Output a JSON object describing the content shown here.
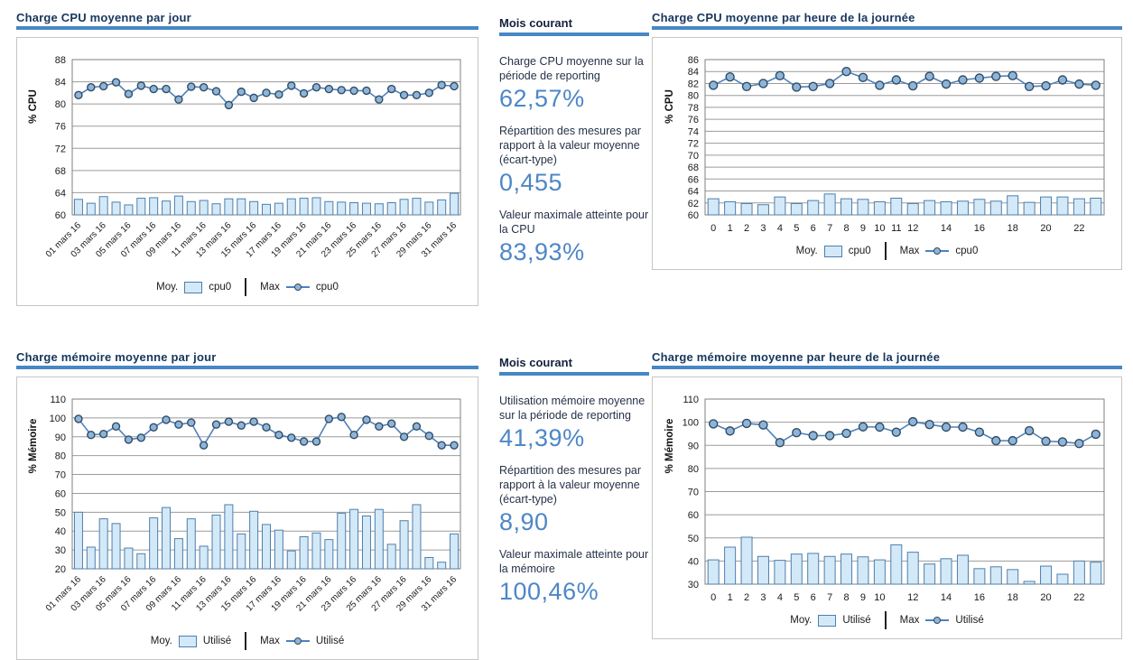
{
  "colors": {
    "title_navy": "#17365d",
    "rule_blue": "#4787c4",
    "stat_value_blue": "#4d87c7",
    "stat_label_navy": "#263248",
    "bar_fill": "#d4e9f7",
    "bar_stroke": "#4e7fae",
    "line_blue": "#4f81bd",
    "marker_fill": "#8fb4d8",
    "marker_stroke": "#2e4d66",
    "grid_grey": "#9b9b9b",
    "plot_border": "#7f7f7f",
    "box_border": "#c6c6c6"
  },
  "panels": {
    "cpu_stats": {
      "header": "Mois courant",
      "items": [
        {
          "label": "Charge CPU moyenne sur la période de reporting",
          "value": "62,57%"
        },
        {
          "label": "Répartition des mesures par rapport à la valeur moyenne (écart-type)",
          "value": "0,455"
        },
        {
          "label": "Valeur maximale atteinte pour la CPU",
          "value": "83,93%"
        }
      ]
    },
    "mem_stats": {
      "header": "Mois courant",
      "items": [
        {
          "label": "Utilisation mémoire moyenne sur la période de reporting",
          "value": "41,39%"
        },
        {
          "label": "Répartition des mesures par rapport à la valeur moyenne (écart-type)",
          "value": "8,90"
        },
        {
          "label": "Valeur maximale atteinte pour la mémoire",
          "value": "100,46%"
        }
      ]
    }
  },
  "chart_data": [
    {
      "type": "bar+line",
      "title": "Charge CPU  moyenne par jour",
      "ylabel": "% CPU",
      "ylim": [
        60,
        88
      ],
      "ystep": 4,
      "x_label_every": 2,
      "categories": [
        "01 mars 16",
        "02 mars 16",
        "03 mars 16",
        "04 mars 16",
        "05 mars 16",
        "06 mars 16",
        "07 mars 16",
        "08 mars 16",
        "09 mars 16",
        "10 mars 16",
        "11 mars 16",
        "12 mars 16",
        "13 mars 16",
        "14 mars 16",
        "15 mars 16",
        "16 mars 16",
        "17 mars 16",
        "18 mars 16",
        "19 mars 16",
        "20 mars 16",
        "21 mars 16",
        "22 mars 16",
        "23 mars 16",
        "24 mars 16",
        "25 mars 16",
        "26 mars 16",
        "27 mars 16",
        "28 mars 16",
        "29 mars 16",
        "30 mars 16",
        "31 mars 16"
      ],
      "series": {
        "moy": {
          "label": "Moy.",
          "name": "cpu0",
          "values": [
            62.8,
            62.1,
            63.3,
            62.3,
            61.8,
            63.0,
            63.1,
            62.5,
            63.4,
            62.4,
            62.6,
            62.0,
            62.9,
            62.9,
            62.4,
            61.9,
            62.1,
            62.9,
            63.0,
            63.1,
            62.4,
            62.3,
            62.2,
            62.1,
            62.0,
            62.2,
            62.8,
            63.0,
            62.3,
            62.7,
            63.9
          ]
        },
        "max": {
          "label": "Max",
          "name": "cpu0",
          "values": [
            81.6,
            83.0,
            83.2,
            83.9,
            81.8,
            83.3,
            82.7,
            82.7,
            80.8,
            83.1,
            83.0,
            82.3,
            79.8,
            82.2,
            81.1,
            82.0,
            81.7,
            83.3,
            81.9,
            83.0,
            82.7,
            82.5,
            82.4,
            82.4,
            80.8,
            82.7,
            81.6,
            81.6,
            82.0,
            83.4,
            83.2
          ]
        }
      }
    },
    {
      "type": "bar+line",
      "title": "Charge CPU moyenne par heure de la journée",
      "ylabel": "% CPU",
      "ylim": [
        60,
        86
      ],
      "ystep": 2,
      "x_hidden": [
        13,
        15,
        17,
        19,
        21,
        23
      ],
      "categories": [
        "0",
        "1",
        "2",
        "3",
        "4",
        "5",
        "6",
        "7",
        "8",
        "9",
        "10",
        "11",
        "12",
        "13",
        "14",
        "15",
        "16",
        "17",
        "18",
        "19",
        "20",
        "21",
        "22",
        "23"
      ],
      "series": {
        "moy": {
          "label": "Moy.",
          "name": "cpu0",
          "values": [
            62.7,
            62.2,
            61.9,
            61.7,
            63.0,
            61.9,
            62.4,
            63.5,
            62.7,
            62.6,
            62.2,
            62.8,
            61.9,
            62.4,
            62.2,
            62.3,
            62.6,
            62.3,
            63.2,
            62.1,
            63.0,
            63.0,
            62.7,
            62.8
          ]
        },
        "max": {
          "label": "Max",
          "name": "cpu0",
          "values": [
            81.7,
            83.1,
            81.5,
            82.0,
            83.3,
            81.4,
            81.5,
            82.0,
            84.0,
            83.0,
            81.7,
            82.6,
            81.6,
            83.2,
            81.9,
            82.6,
            82.9,
            83.2,
            83.3,
            81.5,
            81.6,
            82.6,
            81.9,
            81.7
          ]
        }
      }
    },
    {
      "type": "bar+line",
      "title": "Charge mémoire moyenne par jour",
      "ylabel": "% Mémoire",
      "ylim": [
        20,
        110
      ],
      "ystep": 10,
      "x_label_every": 2,
      "categories": [
        "01 mars 16",
        "02 mars 16",
        "03 mars 16",
        "04 mars 16",
        "05 mars 16",
        "06 mars 16",
        "07 mars 16",
        "08 mars 16",
        "09 mars 16",
        "10 mars 16",
        "11 mars 16",
        "12 mars 16",
        "13 mars 16",
        "14 mars 16",
        "15 mars 16",
        "16 mars 16",
        "17 mars 16",
        "18 mars 16",
        "19 mars 16",
        "20 mars 16",
        "21 mars 16",
        "22 mars 16",
        "23 mars 16",
        "24 mars 16",
        "25 mars 16",
        "26 mars 16",
        "27 mars 16",
        "28 mars 16",
        "29 mars 16",
        "30 mars 16",
        "31 mars 16"
      ],
      "series": {
        "moy": {
          "label": "Moy.",
          "name": "Utilisé",
          "values": [
            50,
            31.5,
            46.5,
            44,
            31,
            28,
            47,
            52.5,
            36,
            46.5,
            32,
            48.5,
            54,
            38.5,
            50.5,
            43.5,
            40.5,
            29.5,
            37,
            39,
            35.5,
            49.5,
            51.5,
            48,
            51.5,
            33,
            45.5,
            54,
            26,
            23.5,
            38.5
          ]
        },
        "max": {
          "label": "Max",
          "name": "Utilisé",
          "values": [
            99.5,
            91,
            91.5,
            95.5,
            88.5,
            89.5,
            95,
            99,
            96.5,
            97.5,
            85.5,
            96.5,
            98,
            96,
            98,
            95,
            91,
            89.5,
            87.5,
            87.5,
            99.5,
            100.5,
            91,
            99,
            95.5,
            97,
            90,
            95.5,
            90.5,
            85.5,
            85.5
          ]
        }
      }
    },
    {
      "type": "bar+line",
      "title": "Charge mémoire moyenne par heure de la journée",
      "ylabel": "% Mémoire",
      "ylim": [
        30,
        110
      ],
      "ystep": 10,
      "x_hidden": [
        11,
        13,
        15,
        17,
        19,
        21,
        23
      ],
      "categories": [
        "0",
        "1",
        "2",
        "3",
        "4",
        "5",
        "6",
        "7",
        "8",
        "9",
        "10",
        "11",
        "12",
        "13",
        "14",
        "15",
        "16",
        "17",
        "18",
        "19",
        "20",
        "21",
        "22",
        "23"
      ],
      "series": {
        "moy": {
          "label": "Moy.",
          "name": "Utilisé",
          "values": [
            40.5,
            46,
            50.3,
            42,
            40.3,
            43,
            43.3,
            42,
            43,
            41.8,
            40.5,
            47,
            43.8,
            38.7,
            41,
            42.5,
            36.7,
            37.5,
            36.3,
            31.2,
            37.8,
            34.3,
            40,
            39.5
          ]
        },
        "max": {
          "label": "Max",
          "name": "Utilisé",
          "values": [
            99.3,
            96.2,
            99.5,
            98.8,
            91.2,
            95.5,
            94.2,
            94.2,
            95.2,
            98,
            97.9,
            95.7,
            100.2,
            99,
            97.9,
            97.9,
            95.7,
            92,
            92,
            96.3,
            91.8,
            91.5,
            90.8,
            94.8
          ]
        }
      }
    }
  ]
}
